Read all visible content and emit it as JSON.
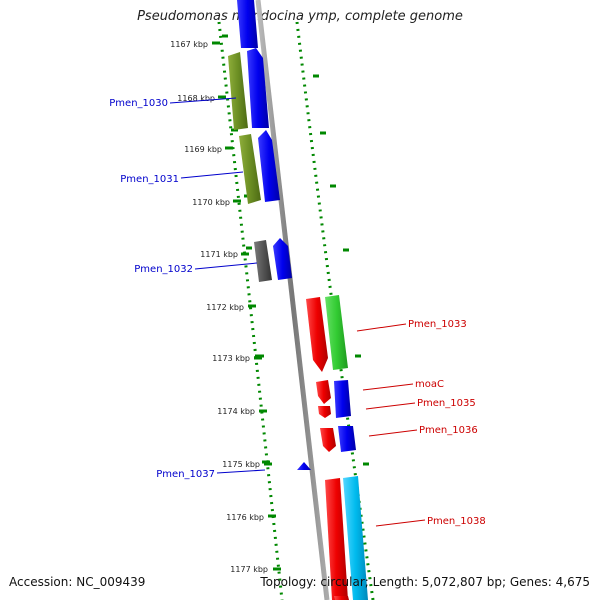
{
  "title": "Pseudomonas mendocina ymp, complete genome",
  "footer": {
    "accession": "Accession: NC_009439",
    "summary": "Topology: circular; Length: 5,072,807 bp; Genes: 4,675"
  },
  "ticks": [
    {
      "label": "1167 kbp"
    },
    {
      "label": "1168 kbp"
    },
    {
      "label": "1169 kbp"
    },
    {
      "label": "1170 kbp"
    },
    {
      "label": "1171 kbp"
    },
    {
      "label": "1172 kbp"
    },
    {
      "label": "1173 kbp"
    },
    {
      "label": "1174 kbp"
    },
    {
      "label": "1175 kbp"
    },
    {
      "label": "1176 kbp"
    },
    {
      "label": "1177 kbp"
    }
  ],
  "genes_left": [
    {
      "label": "Pmen_1030"
    },
    {
      "label": "Pmen_1031"
    },
    {
      "label": "Pmen_1032"
    },
    {
      "label": "Pmen_1037"
    }
  ],
  "genes_right": [
    {
      "label": "Pmen_1033"
    },
    {
      "label": "moaC"
    },
    {
      "label": "Pmen_1035"
    },
    {
      "label": "Pmen_1036"
    },
    {
      "label": "Pmen_1038"
    }
  ],
  "colors": {
    "forward_label": "#0000cc",
    "reverse_label": "#cc0000",
    "blue_cds": "#0000ee",
    "red_cds": "#ee0000",
    "olive_cds": "#6b8e23",
    "green_cds": "#33cc33",
    "gray_cds": "#555555",
    "cyan_cds": "#00bbee",
    "gc_dots": "#008800",
    "backbone": "#888888"
  }
}
